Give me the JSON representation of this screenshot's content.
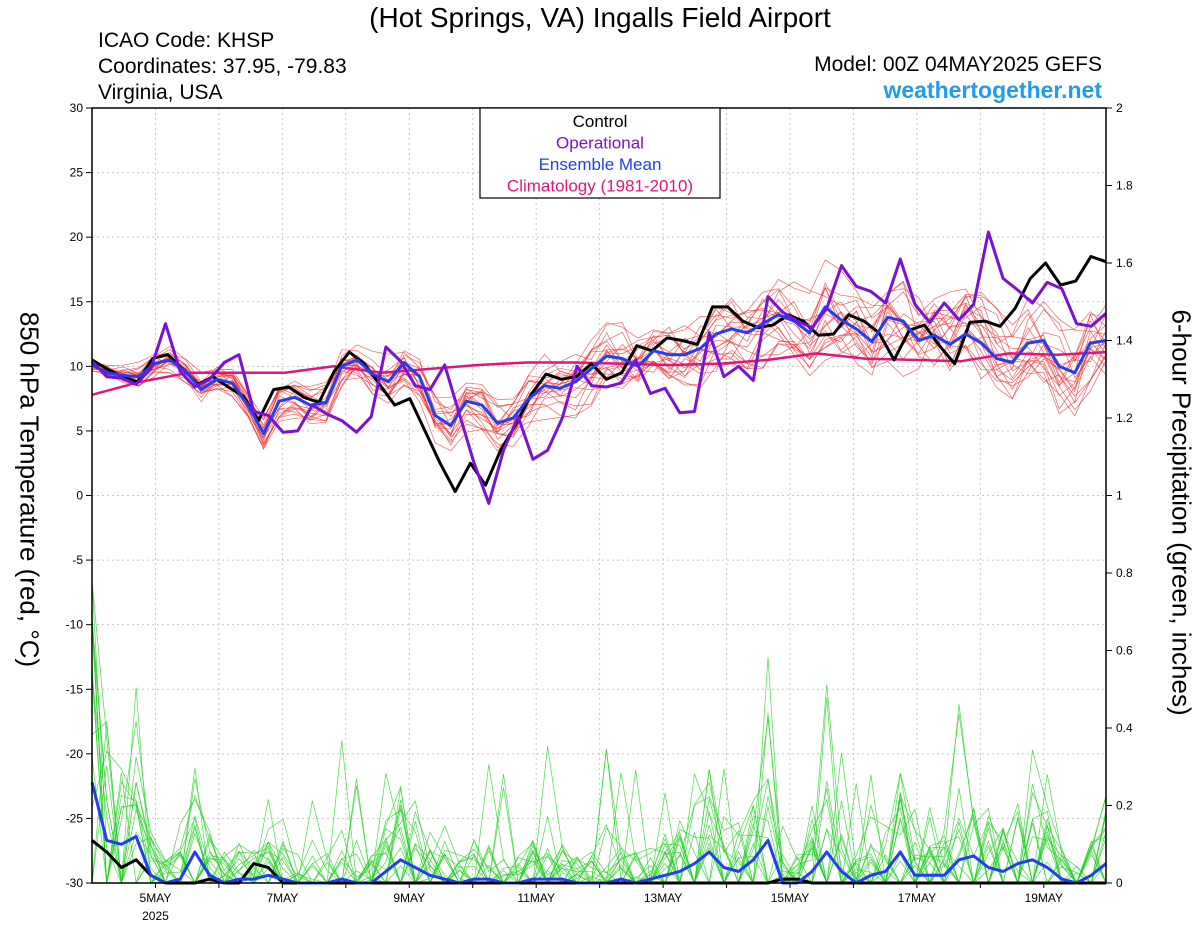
{
  "header": {
    "title": "(Hot Springs, VA) Ingalls Field Airport",
    "icao": "ICAO Code: KHSP",
    "coordinates": "Coordinates: 37.95, -79.83",
    "region": "Virginia, USA",
    "model": "Model: 00Z 04MAY2025 GEFS",
    "site": "weathertogether.net"
  },
  "colors": {
    "control": "#000000",
    "operational": "#7a12d6",
    "ensemble_mean": "#2040f0",
    "climatology": "#e0157d",
    "members_temp": "#f03030",
    "members_precip": "#20d020"
  },
  "chart_data": {
    "type": "line",
    "title": "(Hot Springs, VA) Ingalls Field Airport",
    "ylabel": "850 hPa Temperature (red, °C)",
    "y2label": "6-hour Precipitation (green, inches)",
    "ylim": [
      -30,
      30
    ],
    "y2lim": [
      0,
      2
    ],
    "yticks": [
      "30",
      "25",
      "20",
      "15",
      "10",
      "5",
      "0",
      "-5",
      "-10",
      "-15",
      "-20",
      "-25",
      "-30"
    ],
    "y2ticks": [
      "2",
      "1.8",
      "1.6",
      "1.4",
      "1.2",
      "1",
      "0.8",
      "0.6",
      "0.4",
      "0.2",
      "0"
    ],
    "x_start": "00Z 04MAY2025",
    "x_step_hours": 6,
    "xtick_labels": [
      "5MAY",
      "7MAY",
      "9MAY",
      "11MAY",
      "13MAY",
      "15MAY",
      "17MAY",
      "19MAY"
    ],
    "xtick_sub": "2025",
    "legend": [
      "Control",
      "Operational",
      "Ensemble Mean",
      "Climatology (1981-2010)"
    ],
    "legend_position": "top-center",
    "grid": true,
    "series": [
      {
        "name": "Control",
        "axis": "temp",
        "values": [
          10.5,
          9.8,
          9.2,
          8.8,
          10.6,
          10.9,
          9.8,
          8.6,
          9.2,
          8.4,
          7.7,
          5.8,
          8.2,
          8.4,
          7.6,
          7.2,
          9.6,
          11.1,
          10.2,
          8.6,
          7.0,
          7.5,
          5.0,
          2.5,
          0.3,
          2.5,
          0.8,
          3.5,
          5.5,
          7.8,
          9.4,
          9.0,
          9.2,
          10.2,
          9.0,
          9.5,
          11.6,
          11.2,
          12.2,
          12.0,
          11.7,
          14.6,
          14.6,
          13.5,
          13.0,
          13.2,
          14.0,
          13.5,
          12.4,
          12.5,
          14.0,
          13.5,
          12.6,
          10.5,
          12.8,
          13.2,
          11.6,
          10.2,
          13.4,
          13.5,
          13.1,
          14.5,
          16.8,
          18.0,
          16.3,
          16.6,
          18.5,
          18.1
        ]
      },
      {
        "name": "Operational",
        "axis": "temp",
        "values": [
          10.4,
          9.2,
          9.1,
          8.6,
          9.8,
          13.3,
          9.6,
          8.4,
          9.0,
          10.3,
          10.9,
          6.5,
          6.2,
          4.9,
          5.0,
          7.0,
          6.3,
          5.8,
          4.9,
          6.1,
          11.5,
          10.4,
          8.5,
          8.2,
          10.1,
          6.3,
          2.5,
          -0.6,
          3.5,
          6.1,
          2.8,
          3.5,
          6.0,
          10.0,
          8.5,
          8.4,
          8.7,
          10.5,
          7.9,
          8.3,
          6.4,
          6.5,
          12.6,
          9.2,
          10.0,
          8.9,
          15.4,
          14.2,
          13.5,
          13.0,
          14.5,
          17.8,
          16.2,
          15.8,
          14.9,
          18.3,
          14.8,
          13.4,
          14.9,
          13.6,
          14.8,
          20.4,
          16.8,
          15.9,
          14.9,
          16.5,
          16.0,
          13.3,
          13.1,
          14.1
        ]
      },
      {
        "name": "Ensemble Mean",
        "axis": "temp",
        "values": [
          10.1,
          9.5,
          9.3,
          9.2,
          10.2,
          10.5,
          9.6,
          8.2,
          9.0,
          8.7,
          7.0,
          4.8,
          7.3,
          7.6,
          7.0,
          7.2,
          10.0,
          10.5,
          9.4,
          8.8,
          10.3,
          9.2,
          6.2,
          5.4,
          7.3,
          7.0,
          5.6,
          6.0,
          7.5,
          8.5,
          8.3,
          8.8,
          9.8,
          10.8,
          10.6,
          10.0,
          11.2,
          10.9,
          10.9,
          11.4,
          12.5,
          12.9,
          12.6,
          13.3,
          14.0,
          13.5,
          12.6,
          14.6,
          13.6,
          12.9,
          11.9,
          13.8,
          13.5,
          12.0,
          12.4,
          11.7,
          12.5,
          11.8,
          10.6,
          10.3,
          11.8,
          12.0,
          10.0,
          9.5,
          11.8,
          12.0
        ]
      },
      {
        "name": "Climatology (1981-2010)",
        "axis": "temp",
        "values": [
          7.8,
          8.8,
          9.5,
          9.5,
          9.5,
          10.0,
          9.5,
          9.8,
          10.1,
          10.3,
          10.3,
          10.2,
          10.1,
          10.2,
          10.5,
          11.0,
          10.6,
          10.5,
          10.4,
          11.0,
          10.9,
          11.1
        ]
      },
      {
        "name": "Control precipitation",
        "axis": "precip",
        "values": [
          0.11,
          0.08,
          0.04,
          0.06,
          0.02,
          0.0,
          0.0,
          0.0,
          0.01,
          0.0,
          0.0,
          0.05,
          0.04,
          0.0,
          0.0,
          0.0,
          0.0,
          0.0,
          0.0,
          0.0,
          0.0,
          0.0,
          0.0,
          0.0,
          0.0,
          0.0,
          0.0,
          0.0,
          0.0,
          0.0,
          0.0,
          0.0,
          0.0,
          0.0,
          0.0,
          0.0,
          0.0,
          0.0,
          0.0,
          0.0,
          0.0,
          0.0,
          0.0,
          0.0,
          0.0,
          0.0,
          0.0,
          0.01,
          0.01,
          0.0,
          0.0,
          0.0,
          0.0,
          0.0,
          0.0,
          0.0,
          0.0,
          0.0,
          0.0,
          0.0,
          0.0,
          0.0,
          0.0,
          0.0,
          0.0,
          0.0,
          0.0,
          0.0,
          0.0,
          0.0
        ]
      },
      {
        "name": "Ensemble Mean precipitation",
        "axis": "precip",
        "values": [
          0.26,
          0.11,
          0.1,
          0.12,
          0.02,
          0.0,
          0.01,
          0.08,
          0.02,
          0.0,
          0.01,
          0.01,
          0.02,
          0.01,
          0.0,
          0.0,
          0.0,
          0.01,
          0.0,
          0.0,
          0.03,
          0.06,
          0.04,
          0.02,
          0.01,
          0.0,
          0.01,
          0.01,
          0.0,
          0.0,
          0.01,
          0.01,
          0.01,
          0.0,
          0.0,
          0.0,
          0.01,
          0.0,
          0.01,
          0.02,
          0.03,
          0.05,
          0.08,
          0.04,
          0.03,
          0.06,
          0.11,
          0.0,
          0.0,
          0.03,
          0.08,
          0.03,
          0.0,
          0.02,
          0.03,
          0.08,
          0.02,
          0.02,
          0.02,
          0.06,
          0.07,
          0.04,
          0.03,
          0.05,
          0.06,
          0.04,
          0.01,
          0.0,
          0.02,
          0.05
        ]
      }
    ],
    "member_count": 20,
    "member_temp_envelope_note": "thin red ensemble members spread around the mean",
    "member_precip_note": "thin green ensemble members"
  }
}
